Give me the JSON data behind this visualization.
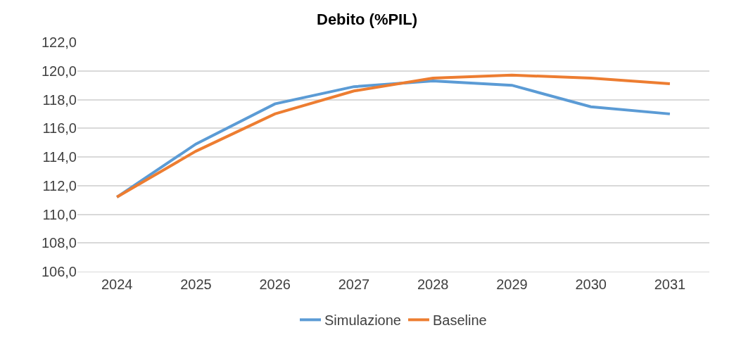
{
  "chart_data": {
    "type": "line",
    "title": "Debito (%PIL)",
    "categories": [
      "2024",
      "2025",
      "2026",
      "2027",
      "2028",
      "2029",
      "2030",
      "2031"
    ],
    "series": [
      {
        "name": "Simulazione",
        "color": "#5b9bd5",
        "values": [
          111.2,
          114.9,
          117.7,
          118.9,
          119.3,
          119.0,
          117.5,
          117.0
        ]
      },
      {
        "name": "Baseline",
        "color": "#ed7d31",
        "values": [
          111.2,
          114.4,
          117.0,
          118.6,
          119.5,
          119.7,
          119.5,
          119.1
        ]
      }
    ],
    "ylim": [
      106,
      122
    ],
    "yticks": [
      {
        "value": 106,
        "label": "106,0"
      },
      {
        "value": 108,
        "label": "108,0"
      },
      {
        "value": 110,
        "label": "110,0"
      },
      {
        "value": 112,
        "label": "112,0"
      },
      {
        "value": 114,
        "label": "114,0"
      },
      {
        "value": 116,
        "label": "116,0"
      },
      {
        "value": 118,
        "label": "118,0"
      },
      {
        "value": 120,
        "label": "120,0"
      },
      {
        "value": 122,
        "label": "122,0"
      }
    ],
    "grid": "y",
    "legend": "bottom",
    "marker": "none",
    "line_style": "solid"
  }
}
